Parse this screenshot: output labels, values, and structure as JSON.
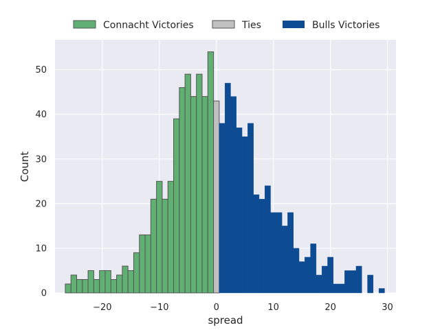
{
  "chart_data": {
    "type": "bar",
    "xlabel": "spread",
    "ylabel": "Count",
    "xlim": [
      -28.3,
      31.5
    ],
    "ylim": [
      0,
      56.7
    ],
    "xticks": [
      -20,
      -10,
      0,
      10,
      20,
      30
    ],
    "xtick_labels": [
      "−20",
      "−10",
      "0",
      "10",
      "20",
      "30"
    ],
    "yticks": [
      0,
      10,
      20,
      30,
      40,
      50
    ],
    "ytick_labels": [
      "0",
      "10",
      "20",
      "30",
      "40",
      "50"
    ],
    "grid": true,
    "legend_position": "top",
    "bin_width": 1,
    "series": [
      {
        "name": "Connacht Victories",
        "color": "#5fb072",
        "edge": "#555555",
        "x": [
          -26,
          -25,
          -24,
          -23,
          -22,
          -21,
          -20,
          -19,
          -18,
          -17,
          -16,
          -15,
          -14,
          -13,
          -12,
          -11,
          -10,
          -9,
          -8,
          -7,
          -6,
          -5,
          -4,
          -3,
          -2,
          -1
        ],
        "values": [
          2,
          4,
          3,
          3,
          5,
          3,
          5,
          5,
          3,
          4,
          6,
          5,
          9,
          13,
          13,
          21,
          25,
          21,
          25,
          39,
          46,
          49,
          44,
          49,
          44,
          54
        ]
      },
      {
        "name": "Ties",
        "color": "#c0c0c0",
        "edge": "#555555",
        "x": [
          0
        ],
        "values": [
          43
        ]
      },
      {
        "name": "Bulls Victories",
        "color": "#0d4c92",
        "edge": "none",
        "x": [
          1,
          2,
          3,
          4,
          5,
          6,
          7,
          8,
          9,
          10,
          11,
          12,
          13,
          14,
          15,
          16,
          17,
          18,
          19,
          20,
          21,
          22,
          23,
          24,
          25,
          27,
          29
        ],
        "values": [
          38,
          47,
          44,
          37,
          35,
          38,
          22,
          21,
          24,
          18,
          18,
          15,
          18,
          10,
          7,
          8,
          11,
          4,
          6,
          8,
          2,
          2,
          5,
          5,
          6,
          4,
          1
        ]
      }
    ]
  }
}
